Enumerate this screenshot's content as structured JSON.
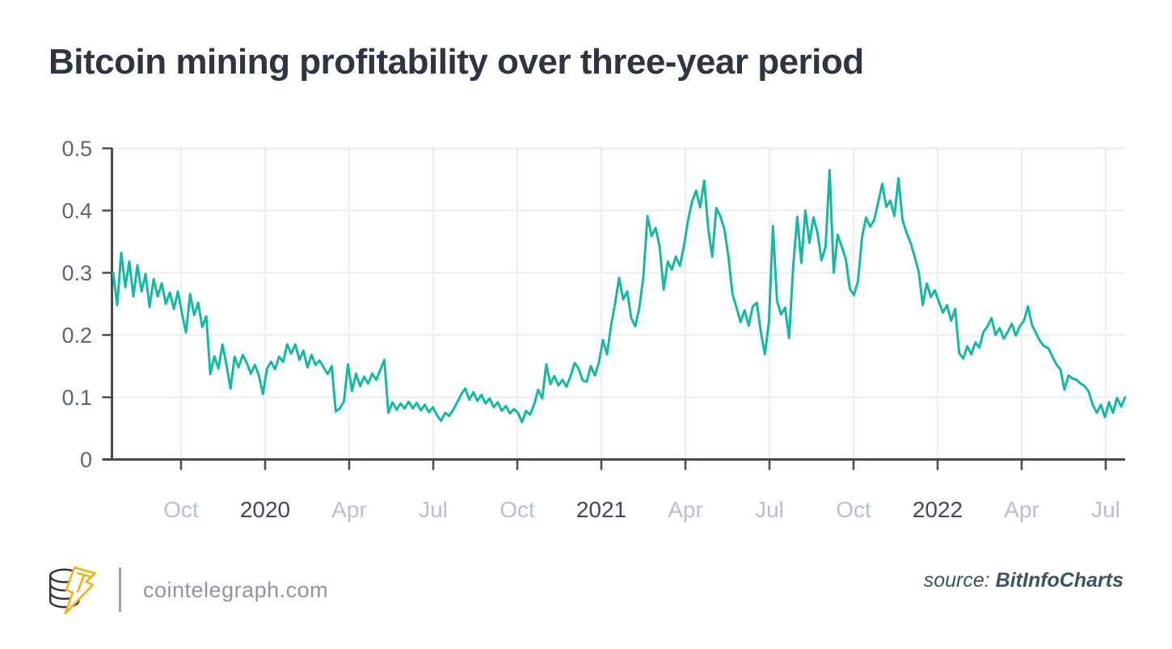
{
  "title": "Bitcoin mining profitability over three-year period",
  "footer": {
    "site": "cointelegraph.com",
    "source_label": "source: ",
    "source_name": "BitInfoCharts",
    "logo_name": "cointelegraph-logo"
  },
  "colors": {
    "line": "#14b9a3",
    "axis": "#3d4e5a",
    "grid": "#ebeef0",
    "title_text": "#2b3642",
    "y_label": "#566876",
    "x_label_month": "#b6c1ca",
    "x_label_year": "#3b4c58",
    "footer_site_text": "#8d979f",
    "footer_source_text": "#3f5260",
    "logo_bolt": "#f2b31a",
    "logo_coins": "#2b3642"
  },
  "chart_data": {
    "type": "line",
    "title": "Bitcoin mining profitability over three-year period",
    "xlabel": "",
    "ylabel": "",
    "ylim": [
      0,
      0.5
    ],
    "y_tick_labels": [
      "0",
      "0.1",
      "0.2",
      "0.3",
      "0.4",
      "0.5"
    ],
    "y_tick_values": [
      0,
      0.1,
      0.2,
      0.3,
      0.4,
      0.5
    ],
    "grid": true,
    "legend_position": "none",
    "x_span": {
      "start": "mid-Jul 2019",
      "end": "late Jul 2022"
    },
    "x_ticks": [
      {
        "label": "Oct",
        "year": false
      },
      {
        "label": "2020",
        "year": true
      },
      {
        "label": "Apr",
        "year": false
      },
      {
        "label": "Jul",
        "year": false
      },
      {
        "label": "Oct",
        "year": false
      },
      {
        "label": "2021",
        "year": true
      },
      {
        "label": "Apr",
        "year": false
      },
      {
        "label": "Jul",
        "year": false
      },
      {
        "label": "Oct",
        "year": false
      },
      {
        "label": "2022",
        "year": true
      },
      {
        "label": "Apr",
        "year": false
      },
      {
        "label": "Jul",
        "year": false
      }
    ],
    "series": [
      {
        "name": "Bitcoin mining profitability",
        "sampling": "uniform time steps (~4.4 days) between x_span.start and x_span.end",
        "values": [
          0.3,
          0.248,
          0.332,
          0.277,
          0.318,
          0.262,
          0.312,
          0.27,
          0.298,
          0.245,
          0.29,
          0.262,
          0.283,
          0.25,
          0.268,
          0.242,
          0.27,
          0.235,
          0.204,
          0.266,
          0.232,
          0.252,
          0.213,
          0.23,
          0.137,
          0.166,
          0.146,
          0.185,
          0.152,
          0.114,
          0.165,
          0.148,
          0.168,
          0.155,
          0.138,
          0.152,
          0.135,
          0.105,
          0.146,
          0.157,
          0.145,
          0.165,
          0.157,
          0.185,
          0.17,
          0.185,
          0.16,
          0.175,
          0.148,
          0.168,
          0.152,
          0.159,
          0.148,
          0.137,
          0.15,
          0.077,
          0.082,
          0.093,
          0.153,
          0.11,
          0.138,
          0.118,
          0.133,
          0.122,
          0.138,
          0.128,
          0.144,
          0.16,
          0.075,
          0.092,
          0.08,
          0.09,
          0.082,
          0.093,
          0.082,
          0.091,
          0.079,
          0.088,
          0.076,
          0.084,
          0.071,
          0.062,
          0.075,
          0.07,
          0.08,
          0.092,
          0.105,
          0.114,
          0.096,
          0.108,
          0.094,
          0.104,
          0.09,
          0.098,
          0.084,
          0.092,
          0.078,
          0.086,
          0.074,
          0.081,
          0.075,
          0.06,
          0.078,
          0.072,
          0.088,
          0.112,
          0.098,
          0.153,
          0.121,
          0.134,
          0.119,
          0.128,
          0.117,
          0.134,
          0.155,
          0.146,
          0.127,
          0.125,
          0.15,
          0.135,
          0.156,
          0.192,
          0.169,
          0.215,
          0.251,
          0.292,
          0.257,
          0.27,
          0.227,
          0.214,
          0.244,
          0.294,
          0.391,
          0.359,
          0.372,
          0.342,
          0.273,
          0.318,
          0.305,
          0.326,
          0.311,
          0.342,
          0.383,
          0.414,
          0.432,
          0.405,
          0.448,
          0.371,
          0.326,
          0.404,
          0.391,
          0.37,
          0.326,
          0.266,
          0.244,
          0.221,
          0.24,
          0.215,
          0.246,
          0.252,
          0.205,
          0.169,
          0.221,
          0.375,
          0.255,
          0.233,
          0.244,
          0.195,
          0.31,
          0.39,
          0.316,
          0.4,
          0.348,
          0.389,
          0.364,
          0.32,
          0.342,
          0.465,
          0.3,
          0.361,
          0.342,
          0.322,
          0.274,
          0.264,
          0.287,
          0.357,
          0.389,
          0.374,
          0.385,
          0.413,
          0.443,
          0.406,
          0.416,
          0.391,
          0.452,
          0.385,
          0.364,
          0.348,
          0.326,
          0.302,
          0.248,
          0.283,
          0.261,
          0.272,
          0.253,
          0.236,
          0.248,
          0.223,
          0.242,
          0.171,
          0.162,
          0.182,
          0.169,
          0.188,
          0.18,
          0.205,
          0.214,
          0.227,
          0.2,
          0.211,
          0.194,
          0.205,
          0.218,
          0.199,
          0.214,
          0.223,
          0.246,
          0.216,
          0.203,
          0.19,
          0.182,
          0.179,
          0.166,
          0.153,
          0.145,
          0.112,
          0.135,
          0.13,
          0.128,
          0.122,
          0.118,
          0.109,
          0.088,
          0.075,
          0.088,
          0.068,
          0.092,
          0.075,
          0.099,
          0.085,
          0.1
        ]
      }
    ]
  }
}
